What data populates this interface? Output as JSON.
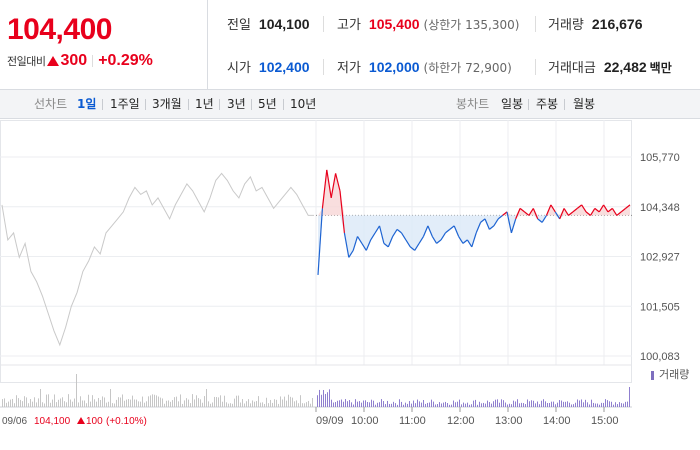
{
  "quote": {
    "price": "104,400",
    "change_label": "전일대비",
    "change_value": "300",
    "change_pct": "+0.29%",
    "prev_close_label": "전일",
    "prev_close": "104,100",
    "high_label": "고가",
    "high": "105,400",
    "upper_limit": "(상한가 135,300)",
    "volume_label": "거래량",
    "volume": "216,676",
    "open_label": "시가",
    "open": "102,400",
    "low_label": "저가",
    "low": "102,000",
    "lower_limit": "(하한가 72,900)",
    "trade_value_label": "거래대금",
    "trade_value": "22,482",
    "trade_value_unit": "백만"
  },
  "tabs": {
    "line_label": "선차트",
    "line_periods": [
      "1일",
      "1주일",
      "3개월",
      "1년",
      "3년",
      "5년",
      "10년"
    ],
    "active_index": 0,
    "candle_label": "봉차트",
    "candle_periods": [
      "일봉",
      "주봉",
      "월봉"
    ]
  },
  "chart_data": {
    "type": "line",
    "y_ticks": [
      "105,770",
      "104,348",
      "102,927",
      "101,505",
      "100,083"
    ],
    "y_range": [
      100083,
      105770
    ],
    "x_ticks": [
      "09/09",
      "10:00",
      "11:00",
      "12:00",
      "13:00",
      "14:00",
      "15:00"
    ],
    "prev_close_level": 104100,
    "volume_legend": "거래량",
    "footer": {
      "date": "09/06",
      "price": "104,100",
      "change": "100",
      "pct": "(+0.10%)"
    },
    "prev_day_series": [
      104400,
      103400,
      103600,
      102900,
      103300,
      102500,
      102200,
      101800,
      101300,
      100800,
      100400,
      100900,
      101500,
      101900,
      102500,
      102800,
      103200,
      103000,
      103600,
      103800,
      104000,
      104200,
      104600,
      104900,
      104700,
      104800,
      104400,
      104600,
      104300,
      104000,
      104400,
      104700,
      105000,
      104800,
      104500,
      104200,
      104600,
      105100,
      105300,
      105100,
      104800,
      104600,
      105000,
      105200,
      104800,
      104900,
      104600,
      104300,
      104500,
      104700,
      104900,
      104700,
      104400,
      104100,
      104100
    ],
    "today_series": [
      102400,
      104300,
      105400,
      104600,
      105300,
      104800,
      103600,
      102900,
      103100,
      103500,
      103300,
      103100,
      103400,
      103600,
      103800,
      103300,
      103200,
      103500,
      103700,
      103600,
      103400,
      103200,
      103100,
      103300,
      103500,
      103800,
      103500,
      103300,
      103400,
      103600,
      103700,
      103800,
      103500,
      103300,
      103400,
      103200,
      103600,
      103900,
      104000,
      103700,
      103800,
      104000,
      104100,
      104200,
      103600,
      104000,
      104300,
      104200,
      104100,
      104300,
      104000,
      103900,
      104100,
      104400,
      104200,
      104000,
      104300,
      104100,
      104200,
      104300,
      104400,
      104200,
      104100,
      104300,
      104200,
      104400,
      104200,
      104300,
      104100,
      104200,
      104300,
      104400
    ]
  }
}
